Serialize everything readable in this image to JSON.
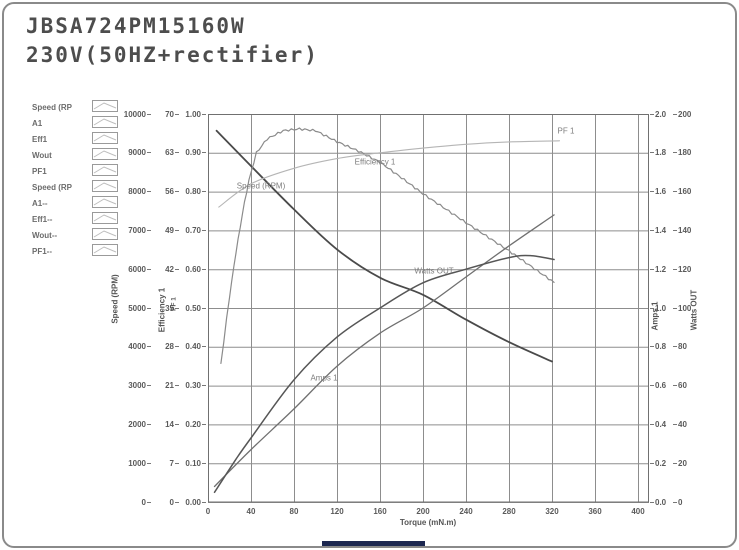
{
  "title": {
    "line1": "JBSA724PM15160W",
    "line2": "230V(50HZ+rectifier)"
  },
  "colors": {
    "frame_border": "#8a8a8a",
    "grid": "#8d8d8d",
    "plot_border": "#707070",
    "title_text": "#4d4d4d",
    "tick_text": "#5a5a5a",
    "accent_bar": "#1c2750"
  },
  "legend": {
    "items": [
      {
        "label": "Speed (RP",
        "icon": "curve-preview-icon"
      },
      {
        "label": "A1",
        "icon": "curve-preview-icon"
      },
      {
        "label": "Eff1",
        "icon": "curve-preview-icon"
      },
      {
        "label": "Wout",
        "icon": "curve-preview-icon"
      },
      {
        "label": "PF1",
        "icon": "curve-preview-icon"
      },
      {
        "label": "Speed (RP",
        "icon": "curve-preview-icon"
      },
      {
        "label": "A1--",
        "icon": "curve-preview-icon"
      },
      {
        "label": "Eff1--",
        "icon": "curve-preview-icon"
      },
      {
        "label": "Wout--",
        "icon": "curve-preview-icon"
      },
      {
        "label": "PF1--",
        "icon": "curve-preview-icon"
      }
    ]
  },
  "chart_data": {
    "type": "line",
    "title": "",
    "xlabel": "Torque (mN.m)",
    "grid": true,
    "x_axis": {
      "min": 0,
      "max": 400,
      "step": 40,
      "decimals": 0
    },
    "axes_left": [
      {
        "label": "Speed (RPM)",
        "min": 0,
        "max": 10000,
        "step": 1000,
        "decimals": 0
      },
      {
        "label": "Efficiency 1",
        "min": 0,
        "max": 70,
        "step": 7,
        "decimals": 0
      },
      {
        "label": "PF 1",
        "min": 0,
        "max": 1,
        "step": 0.1,
        "decimals": 2
      }
    ],
    "axes_right": [
      {
        "label": "Amps 1",
        "min": 0,
        "max": 2,
        "step": 0.2,
        "decimals": 1
      },
      {
        "label": "Watts OUT",
        "min": 0,
        "max": 200,
        "step": 20,
        "decimals": 0
      }
    ],
    "series": [
      {
        "name": "Speed (RPM)",
        "axis": "left0",
        "color": "#4a4a4a",
        "width": 1.8,
        "noisy": false,
        "points": [
          [
            8,
            9570
          ],
          [
            40,
            8660
          ],
          [
            80,
            7540
          ],
          [
            120,
            6510
          ],
          [
            160,
            5780
          ],
          [
            200,
            5340
          ],
          [
            240,
            4700
          ],
          [
            280,
            4120
          ],
          [
            320,
            3620
          ]
        ]
      },
      {
        "name": "Efficiency 1",
        "axis": "left1",
        "color": "#8b8b8b",
        "width": 1.2,
        "noisy": true,
        "points": [
          [
            12,
            25
          ],
          [
            20,
            37
          ],
          [
            26,
            45
          ],
          [
            32,
            52
          ],
          [
            38,
            58
          ],
          [
            45,
            63
          ],
          [
            55,
            65.5
          ],
          [
            70,
            67
          ],
          [
            85,
            67.3
          ],
          [
            100,
            67
          ],
          [
            120,
            65
          ],
          [
            140,
            63.3
          ],
          [
            160,
            61.3
          ],
          [
            180,
            58.5
          ],
          [
            200,
            55.6
          ],
          [
            240,
            50.4
          ],
          [
            280,
            45.3
          ],
          [
            322,
            39.6
          ]
        ]
      },
      {
        "name": "PF 1",
        "axis": "left2",
        "color": "#b5b5b5",
        "width": 1.1,
        "noisy": false,
        "points": [
          [
            10,
            0.76
          ],
          [
            40,
            0.82
          ],
          [
            80,
            0.86
          ],
          [
            120,
            0.885
          ],
          [
            160,
            0.9
          ],
          [
            200,
            0.912
          ],
          [
            240,
            0.922
          ],
          [
            280,
            0.928
          ],
          [
            327,
            0.931
          ]
        ]
      },
      {
        "name": "Amps 1",
        "axis": "right0",
        "color": "#707070",
        "width": 1.3,
        "noisy": false,
        "points": [
          [
            6,
            0.08
          ],
          [
            40,
            0.27
          ],
          [
            80,
            0.48
          ],
          [
            120,
            0.7
          ],
          [
            160,
            0.87
          ],
          [
            200,
            1.0
          ],
          [
            240,
            1.16
          ],
          [
            280,
            1.32
          ],
          [
            322,
            1.48
          ]
        ]
      },
      {
        "name": "Watts OUT",
        "axis": "right1",
        "color": "#565656",
        "width": 1.5,
        "noisy": false,
        "points": [
          [
            6,
            5
          ],
          [
            26,
            22
          ],
          [
            40,
            33
          ],
          [
            80,
            63
          ],
          [
            120,
            85
          ],
          [
            160,
            100
          ],
          [
            200,
            113
          ],
          [
            240,
            120
          ],
          [
            280,
            126
          ],
          [
            300,
            127
          ],
          [
            322,
            125
          ]
        ]
      }
    ]
  }
}
